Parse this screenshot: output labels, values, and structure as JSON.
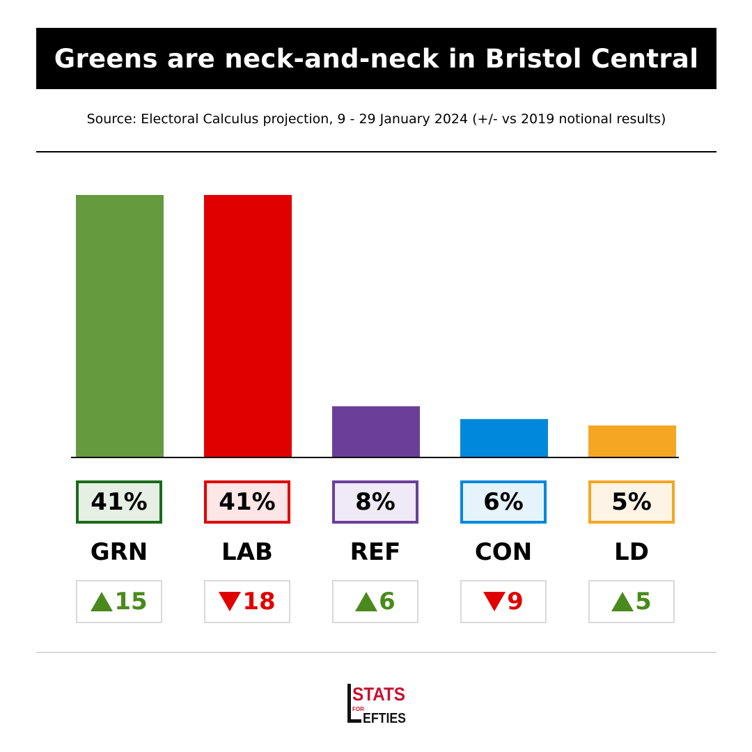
{
  "title": "Greens are neck-and-neck in Bristol Central",
  "source": "Source: Electoral Calculus projection, 9 - 29 January 2024 (+/- vs 2019 notional results)",
  "logo": {
    "line1": "STATS",
    "line2": "FOR",
    "line3": "EFTIES"
  },
  "chart_data": {
    "type": "bar",
    "categories": [
      "GRN",
      "LAB",
      "REF",
      "CON",
      "LD"
    ],
    "values": [
      41,
      41,
      8,
      6,
      5
    ],
    "value_labels": [
      "41%",
      "41%",
      "8%",
      "6%",
      "5%"
    ],
    "changes": [
      15,
      -18,
      6,
      -9,
      5
    ],
    "change_labels": [
      "15",
      "18",
      "6",
      "9",
      "5"
    ],
    "colors": [
      "#659a3f",
      "#e00000",
      "#6b3f99",
      "#0088dd",
      "#f5a623"
    ],
    "box_borders": [
      "#1a6b1a",
      "#e00000",
      "#6b3f99",
      "#0088dd",
      "#f5a623"
    ],
    "box_fills": [
      "#e6efe3",
      "#fce6e6",
      "#efeaf5",
      "#e6f3fb",
      "#fef4e6"
    ],
    "change_colors": {
      "up": "#4a8a1c",
      "down": "#e00000"
    },
    "ylim": [
      0,
      41
    ]
  }
}
